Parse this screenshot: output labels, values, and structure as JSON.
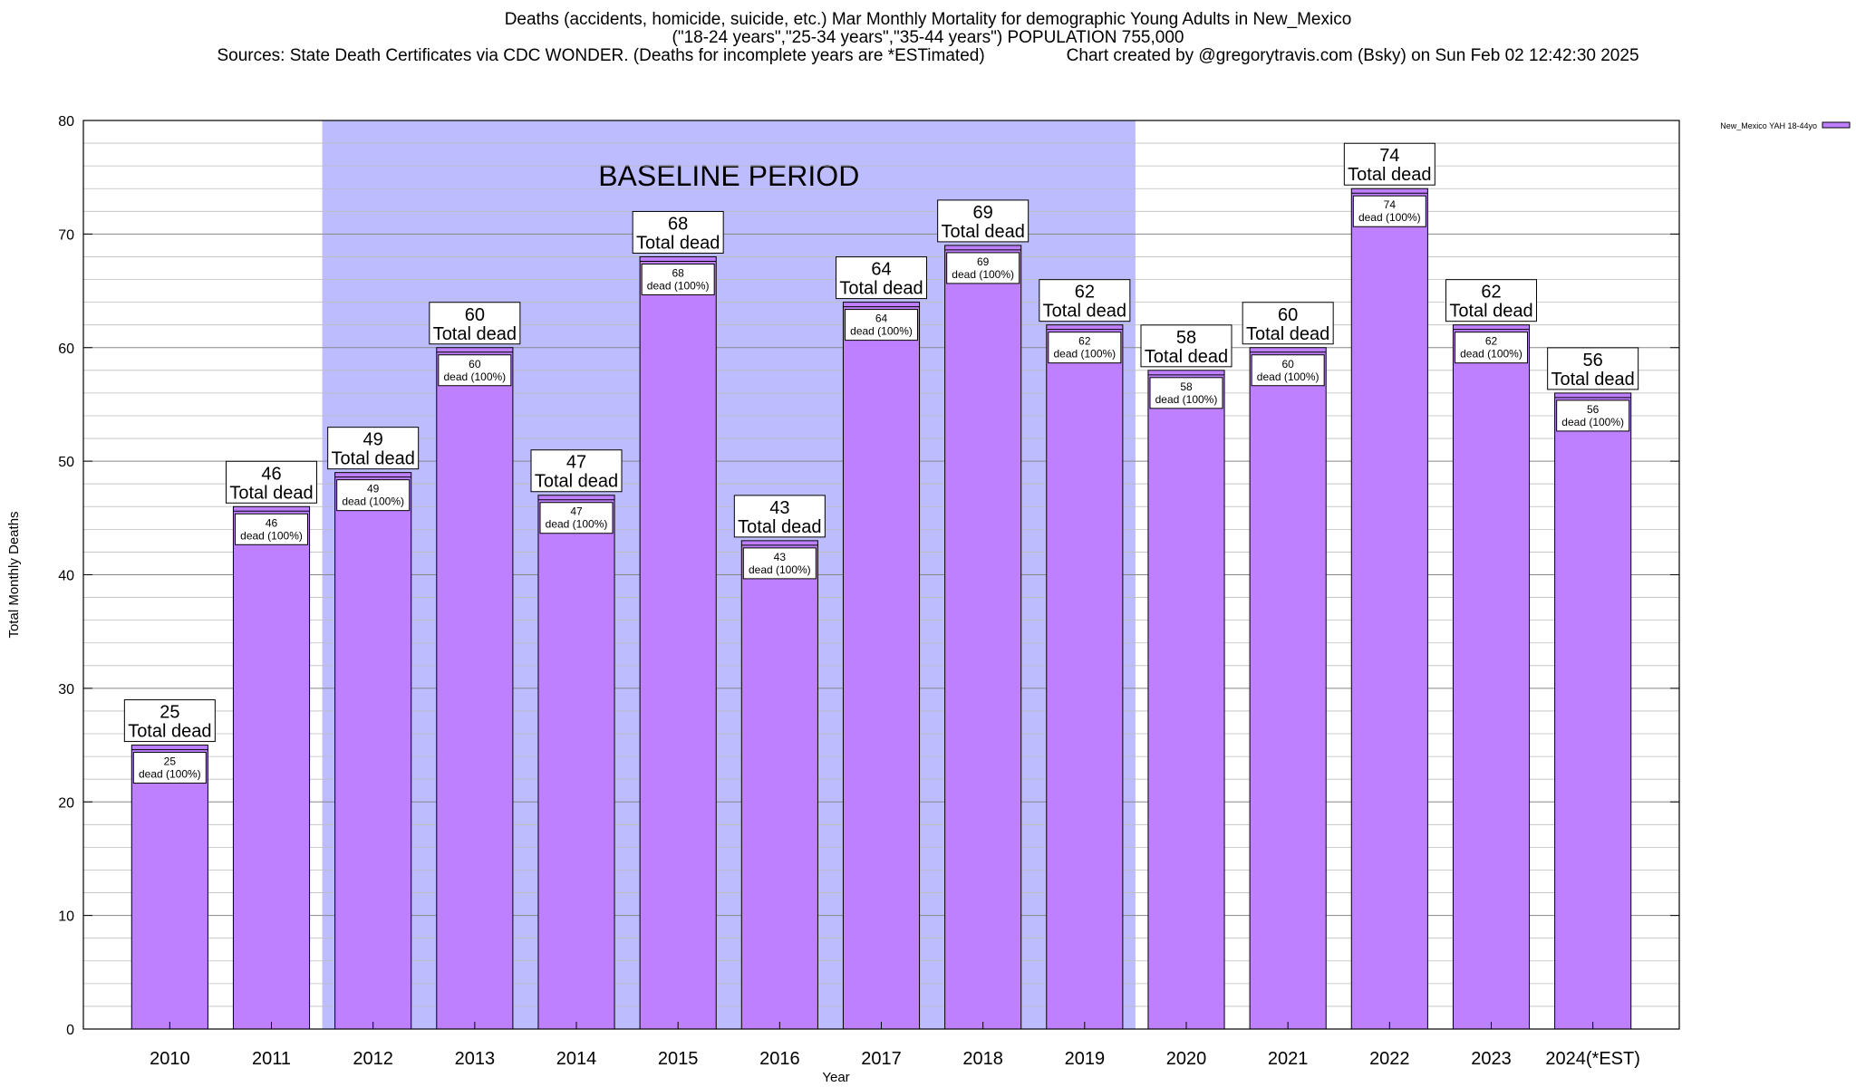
{
  "chart_data": {
    "type": "bar",
    "title_line1": "Deaths (accidents, homicide, suicide, etc.) Mar Monthly Mortality for demographic Young Adults in New_Mexico",
    "title_line2": "(\"18-24 years\",\"25-34 years\",\"35-44 years\") POPULATION 755,000",
    "sources_text": "Sources: State Death Certificates via CDC WONDER. (Deaths for incomplete years are *ESTimated)",
    "credit_text": "Chart created by @gregorytravis.com (Bsky) on Sun Feb 02 12:42:30 2025",
    "xlabel": "Year",
    "ylabel": "Total Monthly Deaths",
    "ylim": [
      0,
      80
    ],
    "yticks": [
      0,
      10,
      20,
      30,
      40,
      50,
      60,
      70,
      80
    ],
    "grid": "horizontal",
    "legend_position": "top-right",
    "categories": [
      "2010",
      "2011",
      "2012",
      "2013",
      "2014",
      "2015",
      "2016",
      "2017",
      "2018",
      "2019",
      "2020",
      "2021",
      "2022",
      "2023",
      "2024(*EST)"
    ],
    "series": [
      {
        "name": "New_Mexico YAH 18-44yo",
        "color": "#bf80ff",
        "values": [
          25,
          46,
          49,
          60,
          47,
          68,
          43,
          64,
          69,
          62,
          58,
          60,
          74,
          62,
          56
        ]
      }
    ],
    "total_label_text": "Total dead",
    "segment_label_text": "dead (100%)",
    "baseline_period": {
      "label": "BASELINE PERIOD",
      "start_category": "2012",
      "end_category": "2019",
      "color": "#bcbcff"
    }
  }
}
